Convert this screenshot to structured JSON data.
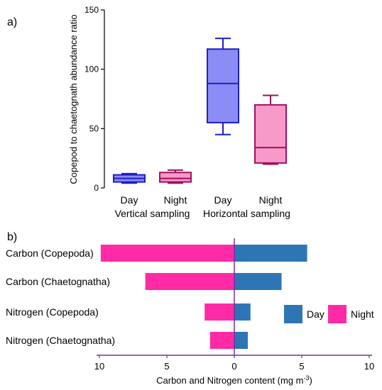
{
  "colors": {
    "day_fill": "#8c8cf7",
    "day_stroke": "#1f1fc4",
    "night_fill": "#f79ac9",
    "night_stroke": "#a01060",
    "day_bar": "#2e75b6",
    "night_bar": "#ff2aa6",
    "axis_b": "#7030a0",
    "axis": "#000000"
  },
  "chart_data": [
    {
      "type": "box",
      "panel_label": "a)",
      "ylabel": "Copepod to chaetognath abundance ratio",
      "ylim": [
        0,
        150
      ],
      "yticks": [
        0,
        50,
        100,
        150
      ],
      "categories": [
        "Day",
        "Night",
        "Day",
        "Night"
      ],
      "groups": [
        "Vertical sampling",
        "Horizontal sampling"
      ],
      "boxes": [
        {
          "category": "Day",
          "group": "Vertical sampling",
          "color": "day",
          "min": 4,
          "q1": 5,
          "median": 8,
          "q3": 11,
          "max": 12
        },
        {
          "category": "Night",
          "group": "Vertical sampling",
          "color": "night",
          "min": 4,
          "q1": 5,
          "median": 8,
          "q3": 13,
          "max": 15
        },
        {
          "category": "Day",
          "group": "Horizontal sampling",
          "color": "day",
          "min": 45,
          "q1": 55,
          "median": 88,
          "q3": 117,
          "max": 126
        },
        {
          "category": "Night",
          "group": "Horizontal sampling",
          "color": "night",
          "min": 20,
          "q1": 21,
          "median": 34,
          "q3": 70,
          "max": 78
        }
      ]
    },
    {
      "type": "bar",
      "orientation": "horizontal",
      "panel_label": "b)",
      "xlabel": "Carbon and Nitrogen content (mg m",
      "xlabel_sup": "-3",
      "xlabel_close": ")",
      "xlim": [
        -10,
        10
      ],
      "xticks": [
        -10,
        -5,
        0,
        5,
        10
      ],
      "xtick_labels": [
        "10",
        "5",
        "0",
        "5",
        "10"
      ],
      "categories": [
        "Carbon (Copepoda)",
        "Carbon (Chaetognatha)",
        "Nitrogen (Copepoda)",
        "Nitrogen (Chaetognatha)"
      ],
      "series": [
        {
          "name": "Night",
          "color": "night_bar",
          "values": [
            -9.9,
            -6.6,
            -2.2,
            -1.8
          ]
        },
        {
          "name": "Day",
          "color": "day_bar",
          "values": [
            5.4,
            3.5,
            1.2,
            1.0
          ]
        }
      ],
      "legend": [
        {
          "label": "Day",
          "color": "day_bar"
        },
        {
          "label": "Night",
          "color": "night_bar"
        }
      ],
      "legend_position": "right"
    }
  ]
}
